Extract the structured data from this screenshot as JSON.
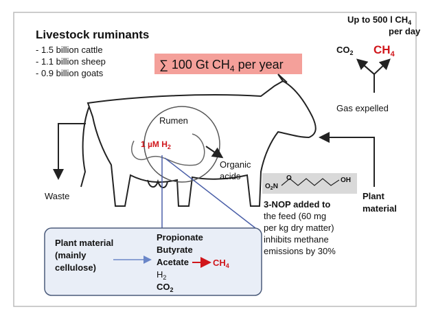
{
  "title": "Livestock ruminants",
  "populations": [
    "- 1.5 billion cattle",
    "- 1.1 billion sheep",
    "- 0.9 billion goats"
  ],
  "total_emission": {
    "text": "∑ 100 Gt CH",
    "sub": "4",
    "suffix": " per year"
  },
  "per_cow": {
    "text": "Up to 500 l CH",
    "sub": "4",
    "line2": "per day"
  },
  "gas_products": [
    {
      "text": "CO",
      "sub": "2"
    },
    {
      "text": "CH",
      "sub": "4"
    }
  ],
  "gas_expelled": "Gas expelled",
  "rumen": "Rumen",
  "hydrogen": {
    "text": "1 µM H",
    "sub": "2"
  },
  "organic_acids": [
    "Organic",
    "acids"
  ],
  "waste": "Waste",
  "plant_material_input": [
    "Plant",
    "material"
  ],
  "molecule": {
    "nitro": {
      "text": "O",
      "sub": "2",
      "suffix": "N"
    },
    "oxygen": "O",
    "hydroxyl": "OH"
  },
  "inhibitor_note": [
    "3-NOP added to",
    "the feed (60 mg",
    "per kg dry matter)",
    "inhibits methane",
    "emissions by 30%"
  ],
  "fermentation": {
    "substrate": [
      "Plant material",
      "(mainly",
      "cellulose)"
    ],
    "products": [
      "Propionate",
      "Butyrate",
      "Acetate"
    ],
    "methane": {
      "text": "CH",
      "sub": "4"
    },
    "hydrogen": {
      "text": "H",
      "sub": "2"
    },
    "carbon_dioxide": {
      "text": "CO",
      "sub": "2"
    }
  }
}
